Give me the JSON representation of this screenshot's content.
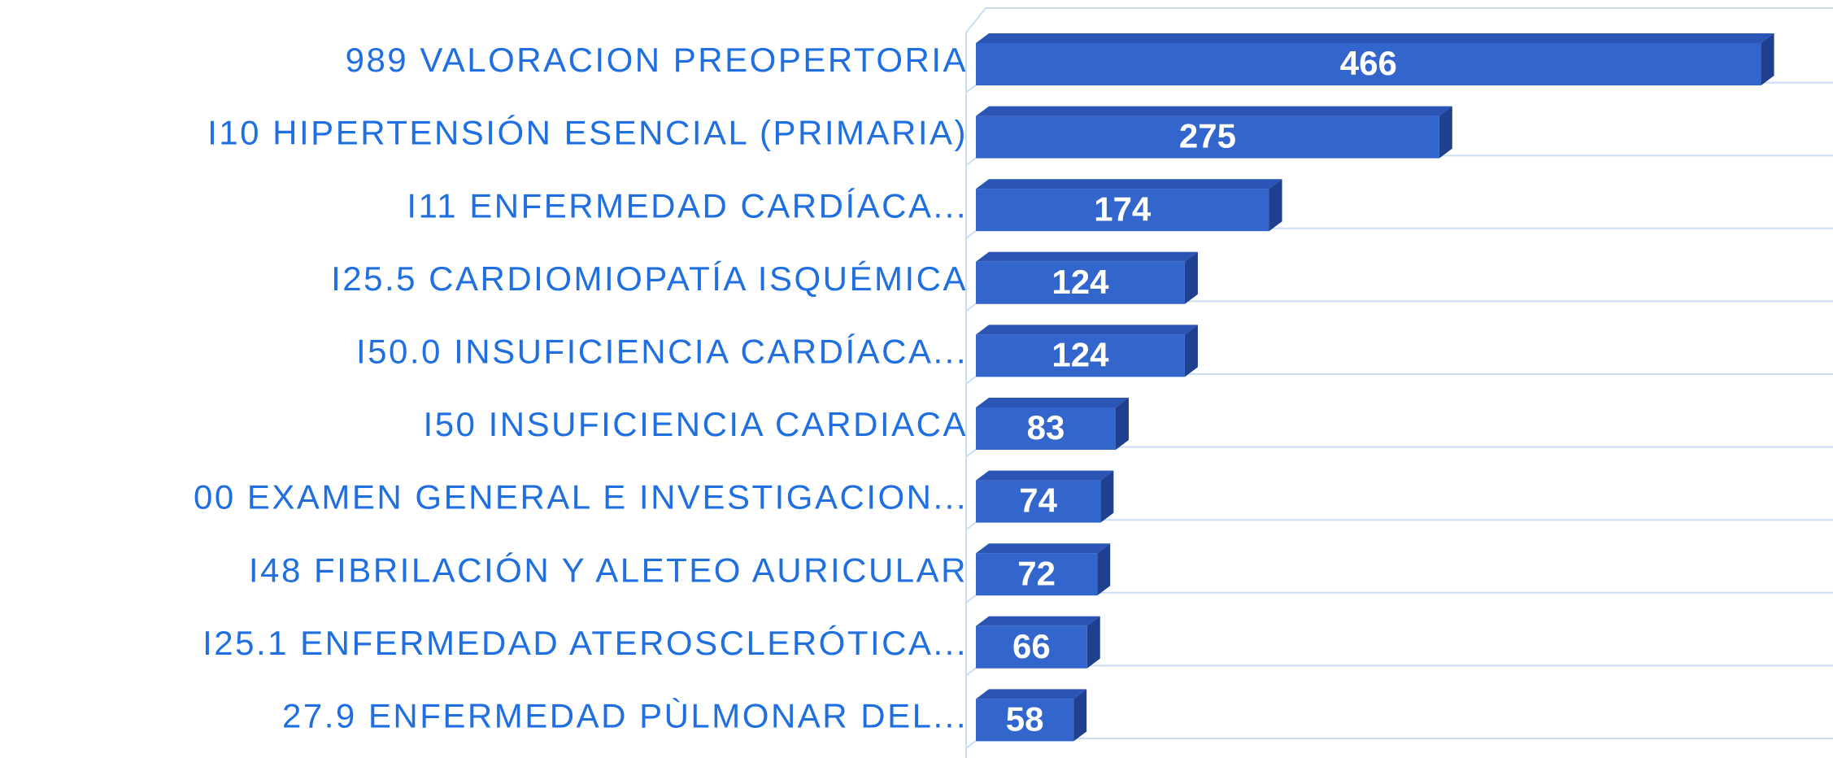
{
  "chart_data": {
    "type": "bar",
    "orientation": "horizontal",
    "categories": [
      "989 VALORACION PREOPERTORIA",
      "I10 HIPERTENSIÓN ESENCIAL (PRIMARIA)",
      "I11 ENFERMEDAD CARDÍACA...",
      "I25.5 CARDIOMIOPATÍA ISQUÉMICA",
      "I50.0 INSUFICIENCIA CARDÍACA...",
      "I50 INSUFICIENCIA CARDIACA",
      "00 EXAMEN GENERAL E INVESTIGACION...",
      "I48   FIBRILACIÓN Y ALETEO AURICULAR",
      "I25.1 ENFERMEDAD ATEROSCLERÓTICA...",
      "27.9 ENFERMEDAD PÙLMONAR DEL..."
    ],
    "values": [
      466,
      275,
      174,
      124,
      124,
      83,
      74,
      72,
      66,
      58
    ],
    "color": "#3366cc",
    "xlim": [
      0,
      500
    ]
  }
}
